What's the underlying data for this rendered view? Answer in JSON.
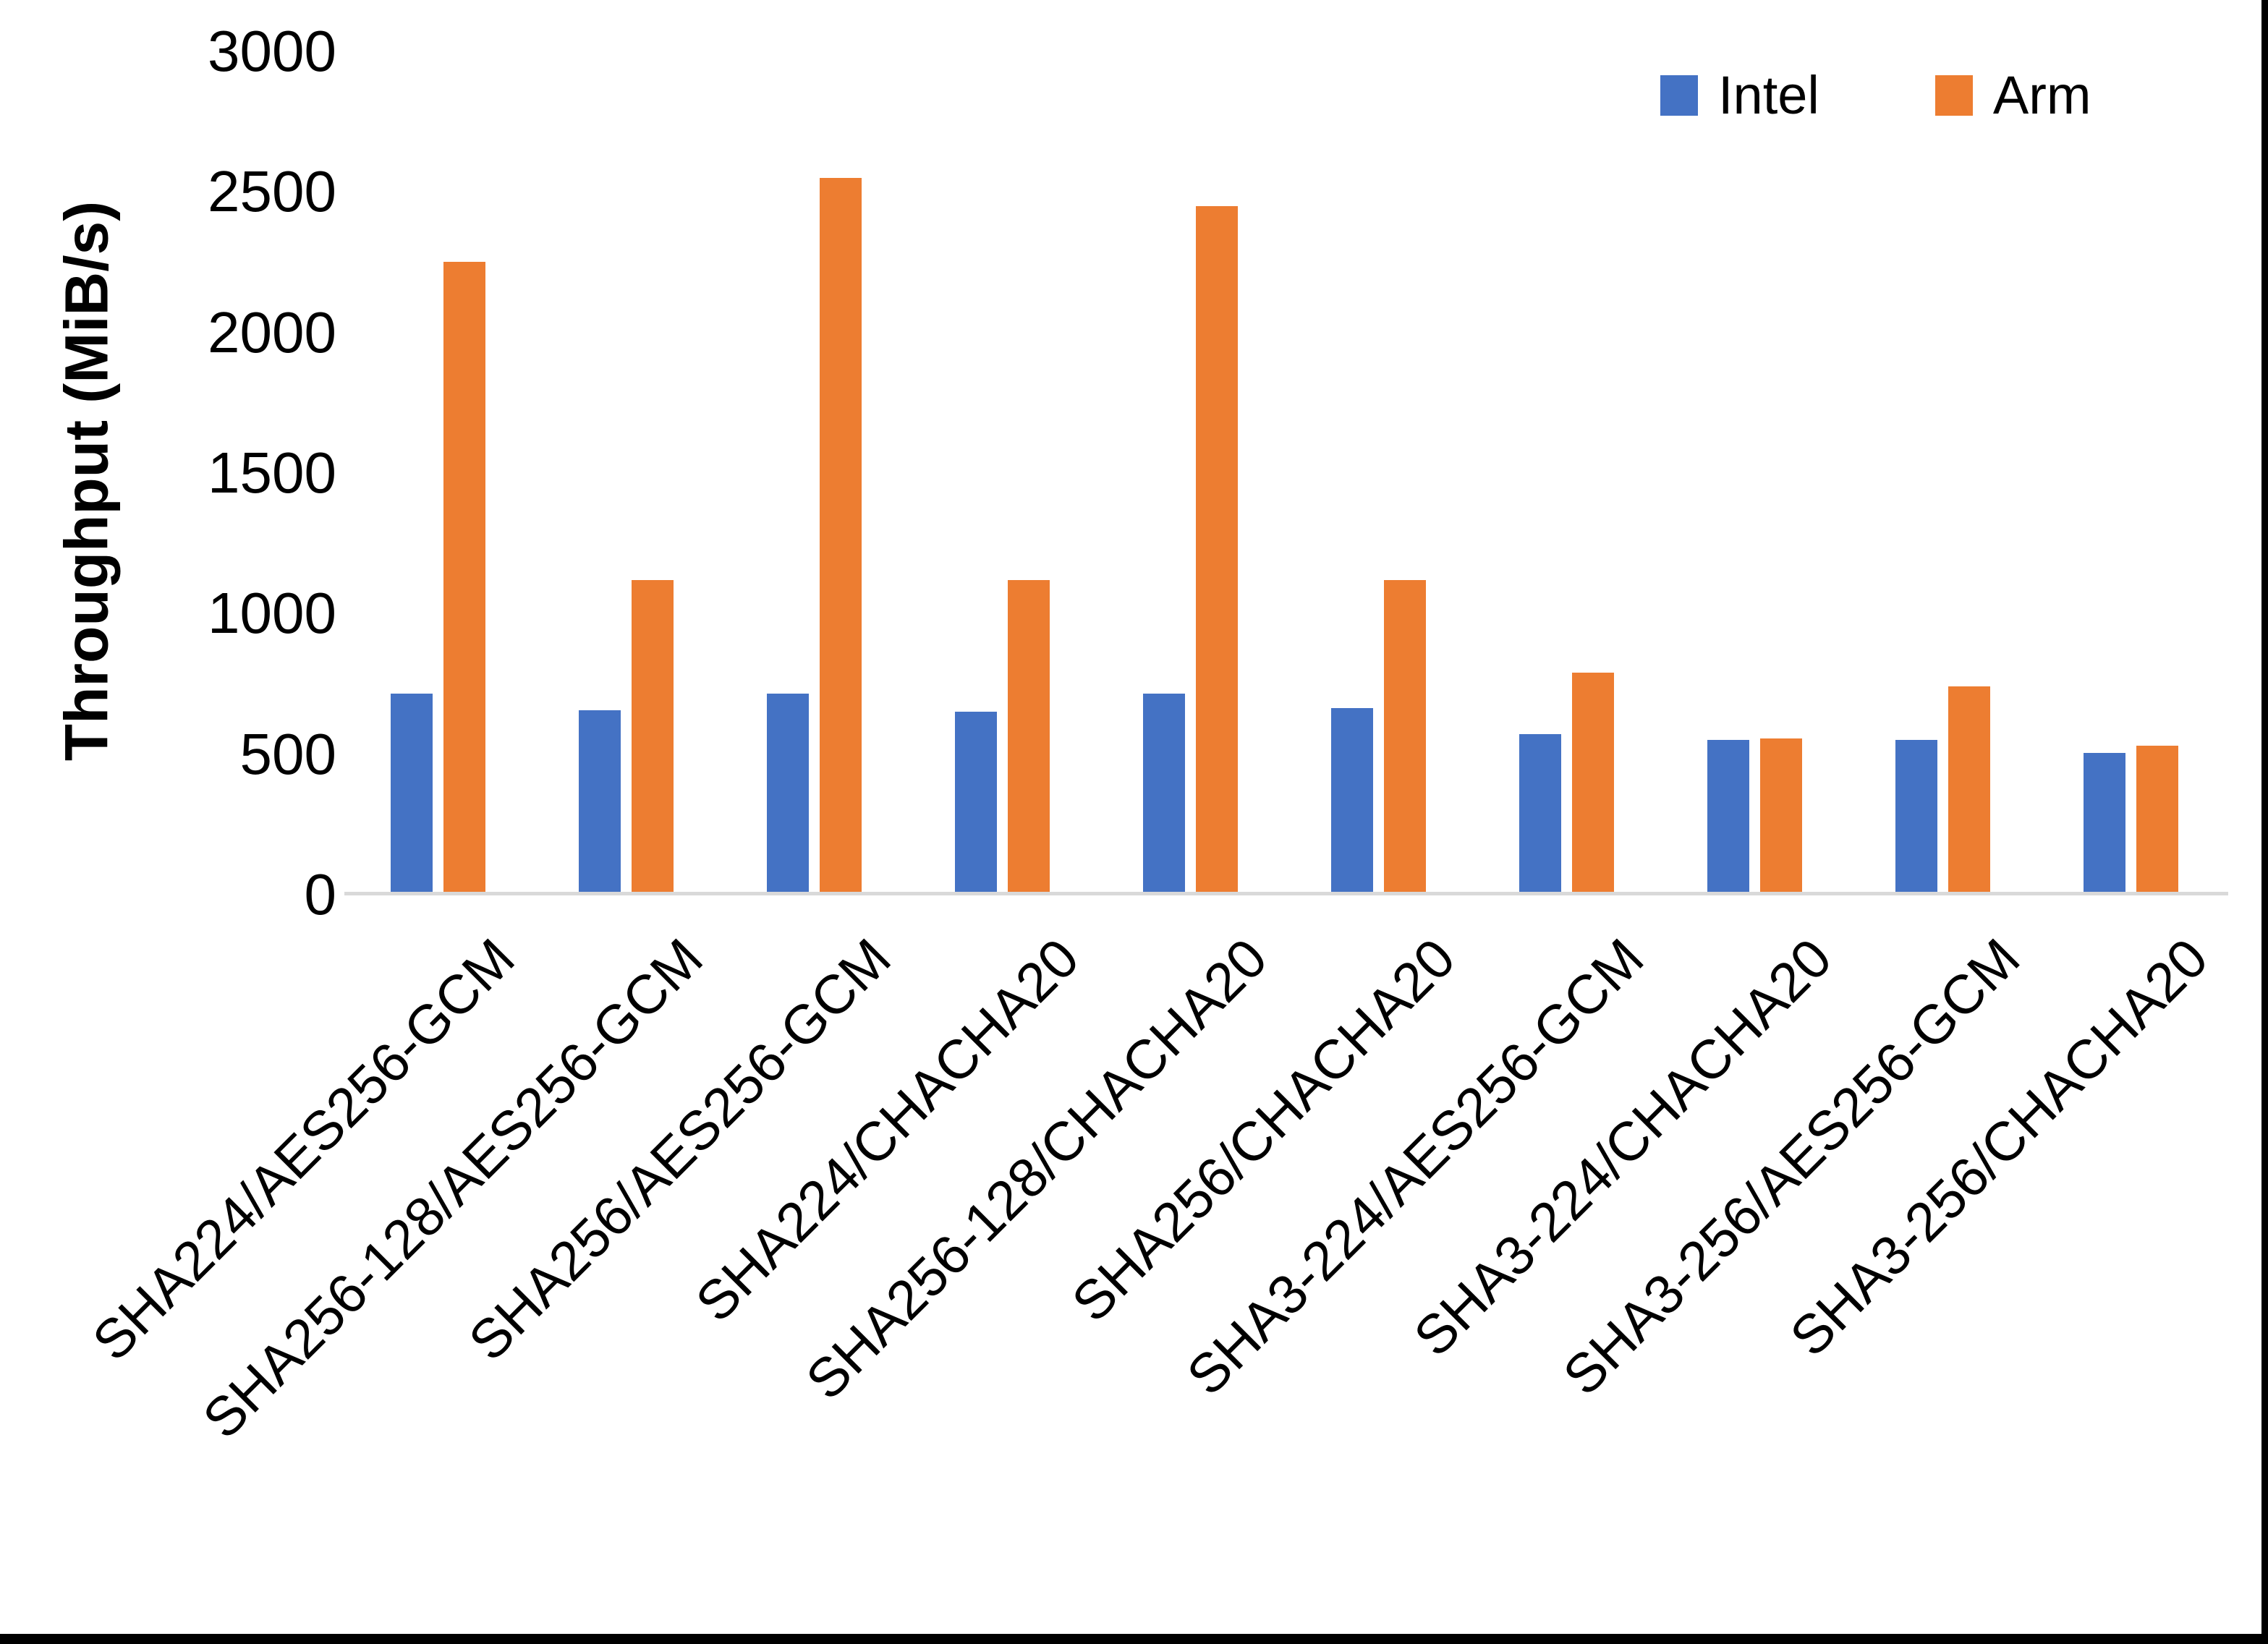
{
  "chart_data": {
    "type": "bar",
    "title": "",
    "xlabel": "",
    "ylabel": "Throughput (MiB/s)",
    "ylim": [
      0,
      3000
    ],
    "yticks": [
      0,
      500,
      1000,
      1500,
      2000,
      2500,
      3000
    ],
    "grid": false,
    "legend_position": "top-right",
    "axis_line_color": "#d9d9d9",
    "categories": [
      "SHA224/AES256-GCM",
      "SHA256-128/AES256-GCM",
      "SHA256/AES256-GCM",
      "SHA224/CHACHA20",
      "SHA256-128/CHACHA20",
      "SHA256/CHACHA20",
      "SHA3-224/AES256-GCM",
      "SHA3-224/CHACHA20",
      "SHA3-256/AES256-GCM",
      "SHA3-256/CHACHA20"
    ],
    "series": [
      {
        "name": "Intel",
        "color": "#4472C4",
        "values": [
          715,
          655,
          715,
          650,
          715,
          665,
          570,
          550,
          550,
          505
        ]
      },
      {
        "name": "Arm",
        "color": "#ED7D31",
        "values": [
          2250,
          1120,
          2550,
          1120,
          2450,
          1120,
          790,
          555,
          740,
          530
        ]
      }
    ]
  }
}
